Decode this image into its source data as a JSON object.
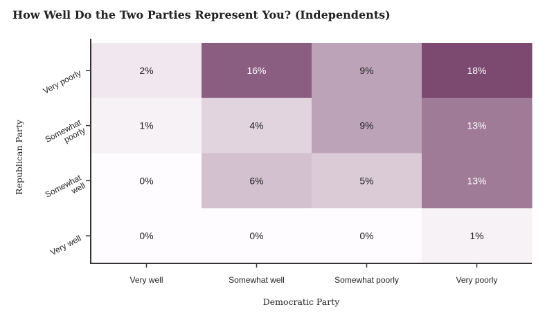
{
  "chart_data": {
    "type": "heatmap",
    "title": "How Well Do the Two Parties Represent You? (Independents)",
    "xlabel": "Democratic Party",
    "ylabel": "Republican Party",
    "x_categories": [
      "Very well",
      "Somewhat well",
      "Somewhat poorly",
      "Very poorly"
    ],
    "y_categories": [
      "Very poorly",
      "Somewhat poorly",
      "Somewhat well",
      "Very well"
    ],
    "y_tick_lines": [
      [
        "Very poorly"
      ],
      [
        "Somewhat",
        "poorly"
      ],
      [
        "Somewhat",
        "well"
      ],
      [
        "Very well"
      ]
    ],
    "values": [
      [
        2,
        16,
        9,
        18
      ],
      [
        1,
        4,
        9,
        13
      ],
      [
        0,
        6,
        5,
        13
      ],
      [
        0,
        0,
        0,
        1
      ]
    ],
    "value_suffix": "%",
    "colors": {
      "low": "#fefcfe",
      "high": "#7c4a70",
      "text_dark": "#222222",
      "text_light": "#ffffff"
    }
  }
}
